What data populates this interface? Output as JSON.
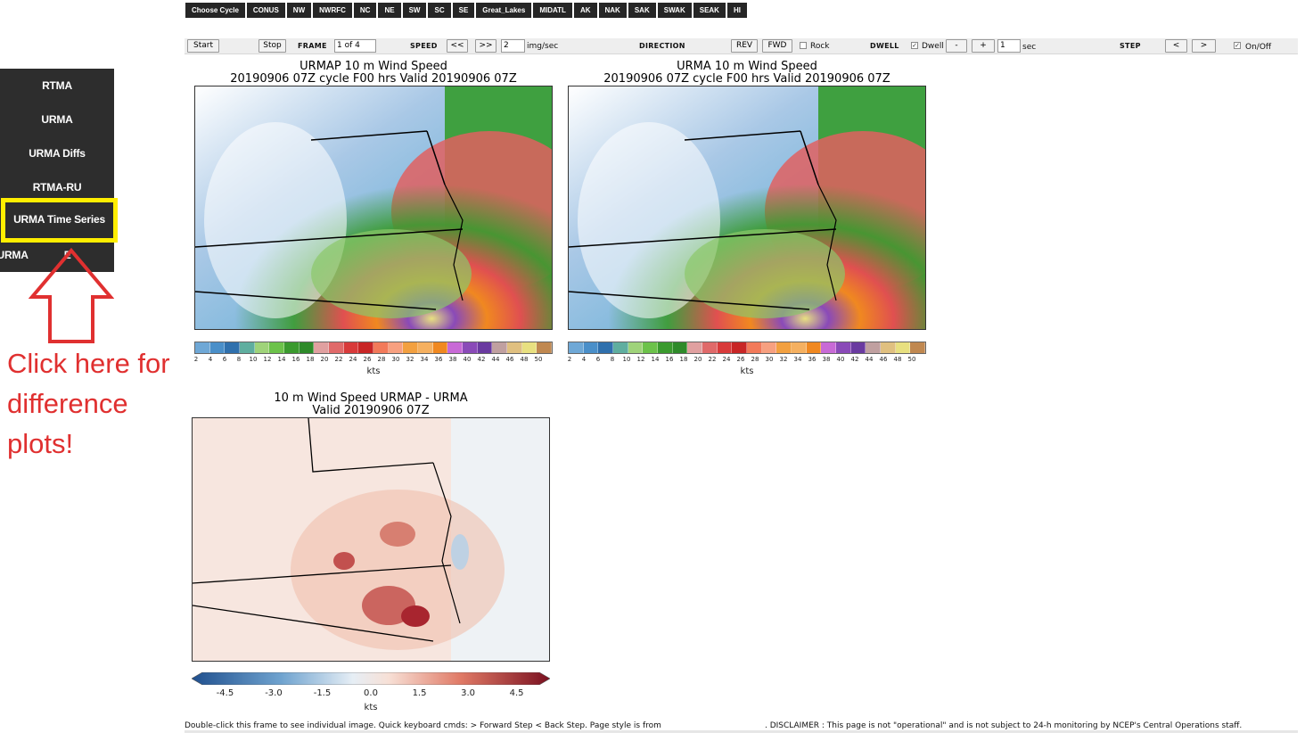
{
  "region_nav": {
    "items": [
      "Choose Cycle",
      "CONUS",
      "NW",
      "NWRFC",
      "NC",
      "NE",
      "SW",
      "SC",
      "SE",
      "Great_Lakes",
      "MIDATL",
      "AK",
      "NAK",
      "SAK",
      "SWAK",
      "SEAK",
      "HI"
    ]
  },
  "controls": {
    "start": "Start",
    "stop": "Stop",
    "frame_label": "FRAME",
    "frame_value": "1 of 4",
    "speed_label": "SPEED",
    "speed_back": "<<",
    "speed_fwd": ">>",
    "speed_value": "2",
    "speed_unit": "img/sec",
    "direction_label": "DIRECTION",
    "rev": "REV",
    "fwd": "FWD",
    "rock": "Rock",
    "dwell_label": "DWELL",
    "dwell_check": "Dwell",
    "minus": "-",
    "plus": "+",
    "dwell_value": "1",
    "dwell_unit": "sec",
    "step_label": "STEP",
    "step_back": "<",
    "step_fwd": ">",
    "onoff": "On/Off"
  },
  "sidebar": {
    "items": [
      "RTMA",
      "URMA",
      "URMA Diffs",
      "RTMA-RU",
      "URMA Time Series",
      "URMA"
    ],
    "items_partial": [
      "URMA",
      "E"
    ]
  },
  "annotation": {
    "text_line1": "Click here for",
    "text_line2": "difference",
    "text_line3": "plots!",
    "color": "#e03030"
  },
  "panels": {
    "p1": {
      "title1": "URMAP 10 m Wind Speed",
      "title2": "20190906 07Z cycle F00 hrs Valid 20190906 07Z"
    },
    "p2": {
      "title1": "URMA 10 m Wind Speed",
      "title2": "20190906 07Z cycle F00 hrs Valid 20190906 07Z"
    },
    "p3": {
      "title1": "10 m Wind Speed URMAP - URMA",
      "title2": "Valid 20190906 07Z"
    }
  },
  "colorbar_speed": {
    "ticks": [
      "2",
      "4",
      "6",
      "8",
      "10",
      "12",
      "14",
      "16",
      "18",
      "20",
      "22",
      "24",
      "26",
      "28",
      "30",
      "32",
      "34",
      "36",
      "38",
      "40",
      "42",
      "44",
      "46",
      "48",
      "50"
    ],
    "unit": "kts",
    "colors": [
      "#6fa8d6",
      "#4a8fc9",
      "#2f70ad",
      "#5fae9f",
      "#9fd37a",
      "#6cc24a",
      "#3a9a2e",
      "#2e8a2a",
      "#e0a0a0",
      "#e06a6a",
      "#d83a3a",
      "#c82626",
      "#f27a5a",
      "#f7a080",
      "#f2a040",
      "#f5b060",
      "#f08820",
      "#c86ad6",
      "#8a4ab8",
      "#6a3aa0",
      "#c0a0a0",
      "#e0c080",
      "#e8e080",
      "#c08850"
    ]
  },
  "colorbar_diff": {
    "ticks": [
      "-4.5",
      "-3.0",
      "-1.5",
      "0.0",
      "1.5",
      "3.0",
      "4.5"
    ],
    "unit": "kts"
  },
  "footer": {
    "left": "Double-click this frame to see individual image. Quick keyboard cmds: > Forward Step < Back Step. Page style is from",
    "right": ". DISCLAIMER : This page is not \"operational\" and is not subject to 24-h monitoring by NCEP's Central Operations staff."
  }
}
